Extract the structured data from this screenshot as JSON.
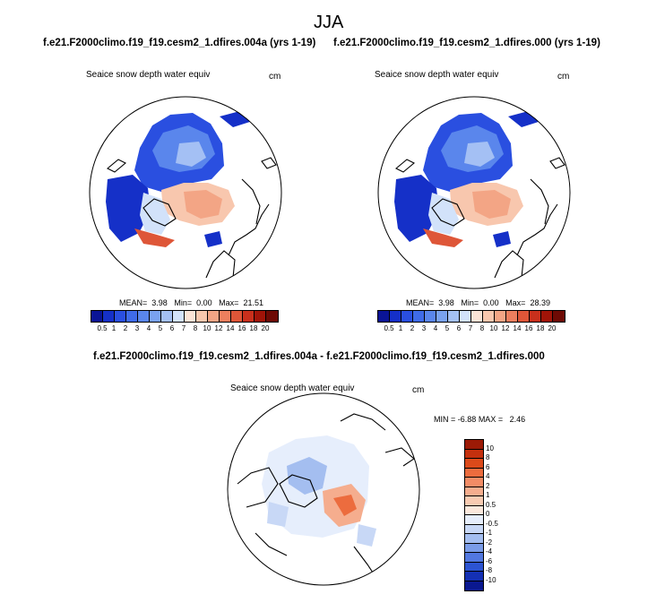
{
  "figure": {
    "title": "JJA",
    "panels": [
      {
        "header": "f.e21.F2000climo.f19_f19.cesm2_1.dfires.004a (yrs 1-19)",
        "variable": "Seaice snow depth water equiv",
        "units": "cm",
        "mean_label": "MEAN=",
        "mean": "3.98",
        "min_label": "Min=",
        "min": "0.00",
        "max_label": "Max=",
        "max": "21.51"
      },
      {
        "header": "f.e21.F2000climo.f19_f19.cesm2_1.dfires.000 (yrs 1-19)",
        "variable": "Seaice snow depth water equiv",
        "units": "cm",
        "mean_label": "MEAN=",
        "mean": "3.98",
        "min_label": "Min=",
        "min": "0.00",
        "max_label": "Max=",
        "max": "28.39"
      }
    ],
    "diff_panel": {
      "header": "f.e21.F2000climo.f19_f19.cesm2_1.dfires.004a - f.e21.F2000climo.f19_f19.cesm2_1.dfires.000",
      "variable": "Seaice snow depth water equiv",
      "units": "cm",
      "min_label": "MIN =",
      "min": "-6.88",
      "max_label": "MAX =",
      "max": "2.46"
    }
  },
  "colorbars": {
    "main": {
      "labels": [
        "0.5",
        "1",
        "2",
        "3",
        "4",
        "5",
        "6",
        "7",
        "8",
        "10",
        "12",
        "14",
        "16",
        "18",
        "20"
      ],
      "colors": [
        "#0a1496",
        "#1530c8",
        "#2a4fe0",
        "#3f6be8",
        "#5a86ec",
        "#7aa2f0",
        "#a4c0f4",
        "#d2e2fa",
        "#fbe3d6",
        "#f8c7ae",
        "#f3a585",
        "#ec7f5e",
        "#de5638",
        "#c8301c",
        "#a11408",
        "#6e0a04"
      ]
    },
    "diff": {
      "labels": [
        "10",
        "8",
        "6",
        "4",
        "2",
        "1",
        "0.5",
        "0",
        "-0.5",
        "-1",
        "-2",
        "-4",
        "-6",
        "-8",
        "-10"
      ],
      "colors": [
        "#9c1a06",
        "#c4300e",
        "#dc4a1a",
        "#ec6c3e",
        "#f28c66",
        "#f5ad8e",
        "#f8cbb2",
        "#fbe8dc",
        "#e6eefc",
        "#c8d8f6",
        "#a4bef0",
        "#7a9ce8",
        "#5278e0",
        "#2c54d2",
        "#1430b4",
        "#0a1890"
      ]
    }
  },
  "colors": {
    "background": "#ffffff",
    "coast": "#000000",
    "land_gap": "#ffffff"
  }
}
